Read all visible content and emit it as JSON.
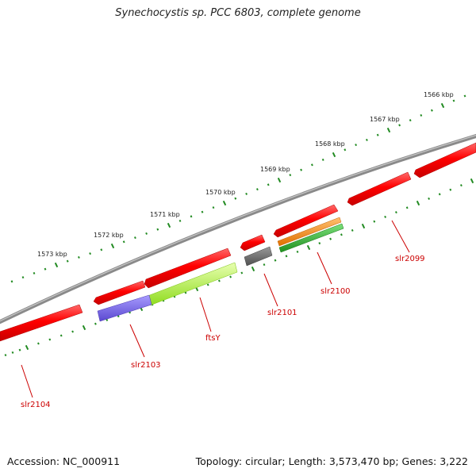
{
  "title": "Synechocystis sp. PCC 6803, complete genome",
  "footer": {
    "accession": "Accession: NC_000911",
    "summary": "Topology: circular; Length: 3,573,470 bp; Genes: 3,222"
  },
  "ruler": {
    "unit": "kbp",
    "ticks": [
      {
        "label": "1566 kbp"
      },
      {
        "label": "1567 kbp"
      },
      {
        "label": "1568 kbp"
      },
      {
        "label": "1569 kbp"
      },
      {
        "label": "1570 kbp"
      },
      {
        "label": "1571 kbp"
      },
      {
        "label": "1572 kbp"
      },
      {
        "label": "1573 kbp"
      }
    ]
  },
  "genes": [
    {
      "label": "slr2099",
      "color": "#ff0000"
    },
    {
      "label": "slr2100",
      "color": "#ff8c1a"
    },
    {
      "label": "slr2101",
      "color": "#707070"
    },
    {
      "label": "ftsY",
      "color": "#b4ff3c"
    },
    {
      "label": "slr2103",
      "color": "#7b68ee"
    },
    {
      "label": "slr2104",
      "color": "#ff0000"
    }
  ],
  "colors": {
    "backbone": "#888888",
    "tick": "#228b22",
    "cds": "#ff0000",
    "label": "#cc0000",
    "cog_green": "#33aa33"
  }
}
